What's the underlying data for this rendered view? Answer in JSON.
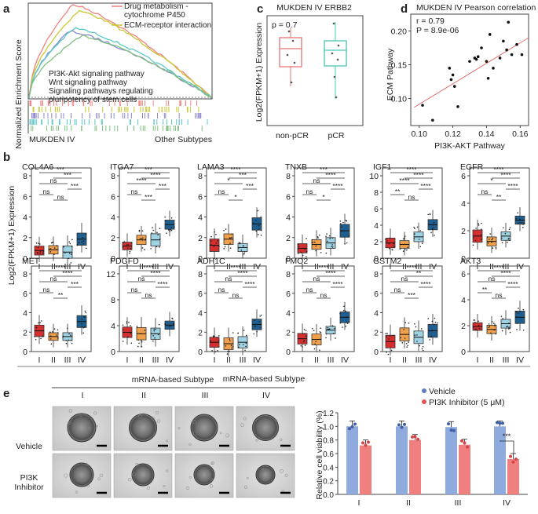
{
  "panel_letters": {
    "a": "a",
    "b": "b",
    "c": "c",
    "d": "d",
    "e": "e"
  },
  "colors": {
    "I": "#d32f2f",
    "II": "#f0a04b",
    "III": "#9fd3e3",
    "IV": "#1f5f8f",
    "c_nonpcr": "#e57373",
    "c_pcr": "#4fc3b7",
    "vehicle": "#8faadc",
    "inhibitor": "#f08080",
    "gsea": [
      "#f08080",
      "#c8c832",
      "#8888cc",
      "#5cc8c8",
      "#80c080"
    ]
  },
  "panel_a": {
    "ylabel": "Normalized Enrichment Score",
    "legend": [
      "Drug metabolism -",
      "cytochrome P450",
      "ECM-receptor interaction",
      "PI3K-Akt signaling pathway",
      "Wnt signaling pathway",
      "Signaling pathways regulating",
      "pluripotency of stem cells"
    ],
    "xleft": "MUKDEN IV",
    "xright": "Other Subtypes"
  },
  "panel_c": {
    "title": "MUKDEN IV ERBB2",
    "pvalue": "p = 0.7",
    "ylabel": "Log2(FPKM+1) Expression",
    "categories": [
      "non-pCR",
      "pCR"
    ]
  },
  "panel_d": {
    "title": "MUKDEN IV Pearson correlation",
    "r": "r = 0.79",
    "p": "P = 8.9e-06",
    "xlabel": "PI3K-AKT Pathway",
    "ylabel": "ECM Pathway",
    "xticks": [
      "0.10",
      "0.12",
      "0.14",
      "0.16"
    ],
    "yticks": [
      "0.10",
      "0.15",
      "0.20"
    ]
  },
  "panel_b": {
    "ylabel": "Log2(FPKM+1) Expression",
    "xlabel": "mRNA-based Subtype",
    "categories": [
      "I",
      "II",
      "III",
      "IV"
    ],
    "genes": [
      {
        "name": "COL4A6",
        "yticks": [
          "0",
          "2",
          "4",
          "6",
          "8"
        ],
        "sig": [
          "***",
          "***",
          "ns",
          "***",
          "ns",
          "ns"
        ]
      },
      {
        "name": "ITGA7",
        "yticks": [
          "0",
          "2",
          "4",
          "6",
          "8"
        ],
        "sig": [
          "***",
          "****",
          "****",
          "***",
          "ns",
          "***"
        ]
      },
      {
        "name": "LAMA3",
        "yticks": [
          "0",
          "2",
          "4",
          "6",
          "8"
        ],
        "sig": [
          "****",
          "***",
          "*",
          "***",
          "ns",
          "*"
        ]
      },
      {
        "name": "TNXB",
        "yticks": [
          "0",
          "2",
          "4",
          "6",
          "8"
        ],
        "sig": [
          "***",
          "****",
          "ns",
          "****",
          "ns",
          "*"
        ]
      },
      {
        "name": "IGF1",
        "yticks": [
          "0",
          "2",
          "4",
          "6",
          "8",
          "10"
        ],
        "sig": [
          "****",
          "****",
          "****",
          "****",
          "**",
          "ns"
        ]
      },
      {
        "name": "EGFR",
        "yticks": [
          "0",
          "2",
          "4",
          "6"
        ],
        "sig": [
          "****",
          "****",
          "*",
          "****",
          "ns",
          "**"
        ]
      },
      {
        "name": "MET",
        "yticks": [
          "0",
          "2",
          "4",
          "6",
          "8"
        ],
        "sig": [
          "****",
          "****",
          "ns",
          "***",
          "ns",
          "**"
        ]
      },
      {
        "name": "PDGFD",
        "yticks": [
          "0",
          "4",
          "8",
          "12"
        ],
        "sig": [
          "****",
          "****",
          "ns",
          "****",
          "ns",
          "ns"
        ]
      },
      {
        "name": "ADH1C",
        "yticks": [
          "0",
          "2",
          "4",
          "6",
          "8"
        ],
        "sig": [
          "****",
          "****",
          "ns",
          "****",
          "ns",
          "ns"
        ]
      },
      {
        "name": "FMO2",
        "yticks": [
          "0",
          "2",
          "4",
          "6",
          "8"
        ],
        "sig": [
          "****",
          "****",
          "ns",
          "****",
          "ns",
          "ns"
        ]
      },
      {
        "name": "GSTM2",
        "yticks": [
          "0",
          "2",
          "4",
          "6",
          "8"
        ],
        "sig": [
          "****",
          "**",
          "ns",
          "****",
          "ns",
          "***"
        ]
      },
      {
        "name": "AKT3",
        "yticks": [
          "0",
          "2",
          "4",
          "6"
        ],
        "sig": [
          "****",
          "****",
          "ns",
          "****",
          "**",
          "ns"
        ]
      }
    ]
  },
  "panel_e": {
    "header": "mRNA-based Subtype",
    "columns": [
      "I",
      "II",
      "III",
      "IV"
    ],
    "rows": [
      "Vehicle",
      "PI3K",
      "Inhibitor"
    ],
    "legend": [
      "Vehicle",
      "PI3K Inhibitor (5 μM)"
    ],
    "ylabel": "Relative cell viability (%)",
    "yticks": [
      "0.0",
      "0.2",
      "0.4",
      "0.6",
      "0.8",
      "1.0",
      "1.2"
    ],
    "sig": "***"
  },
  "chart_data": [
    {
      "type": "scatter",
      "title": "MUKDEN IV Pearson correlation",
      "xlabel": "PI3K-AKT Pathway",
      "ylabel": "ECM Pathway",
      "xlim": [
        0.095,
        0.165
      ],
      "ylim": [
        0.06,
        0.225
      ],
      "x": [
        0.102,
        0.108,
        0.118,
        0.119,
        0.12,
        0.121,
        0.123,
        0.13,
        0.133,
        0.134,
        0.135,
        0.137,
        0.14,
        0.141,
        0.142,
        0.144,
        0.148,
        0.15,
        0.152,
        0.153,
        0.155,
        0.158,
        0.161
      ],
      "y": [
        0.09,
        0.068,
        0.145,
        0.128,
        0.135,
        0.118,
        0.088,
        0.155,
        0.16,
        0.158,
        0.162,
        0.175,
        0.155,
        0.13,
        0.195,
        0.145,
        0.16,
        0.185,
        0.172,
        0.213,
        0.165,
        0.18,
        0.165
      ]
    },
    {
      "type": "bar",
      "xlabel": "",
      "ylabel": "Relative cell viability (%)",
      "categories": [
        "I",
        "II",
        "III",
        "IV"
      ],
      "ylim": [
        0,
        1.2
      ],
      "series": [
        {
          "name": "Vehicle",
          "values": [
            1.0,
            1.0,
            0.99,
            1.0
          ]
        },
        {
          "name": "PI3K Inhibitor (5 μM)",
          "values": [
            0.72,
            0.8,
            0.73,
            0.52
          ]
        }
      ]
    },
    {
      "type": "box",
      "title": "MUKDEN IV ERBB2",
      "ylabel": "Log2(FPKM+1) Expression",
      "categories": [
        "non-pCR",
        "pCR"
      ],
      "medians": [
        8.6,
        8.5
      ]
    }
  ]
}
